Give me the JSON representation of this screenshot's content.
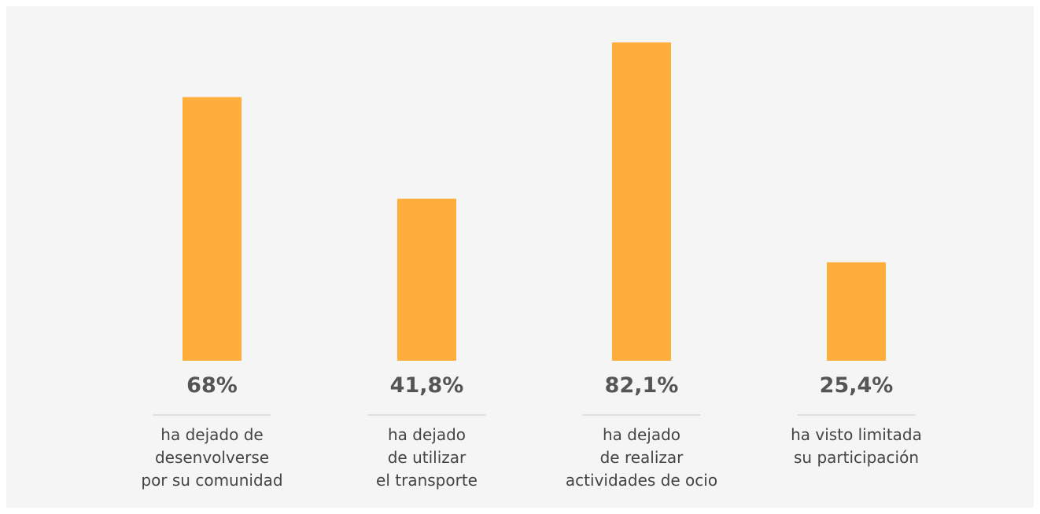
{
  "chart_data": {
    "type": "bar",
    "categories": [
      "ha dejado de\ndesenvolverse\npor su comunidad",
      "ha dejado\nde utilizar\nel transporte",
      "ha dejado\nde realizar\nactividades de ocio",
      "ha visto limitada\nsu participación"
    ],
    "values": [
      68,
      41.8,
      82.1,
      25.4
    ],
    "value_labels": [
      "68%",
      "41,8%",
      "82,1%",
      "25,4%"
    ],
    "color": "#ffad3b",
    "ylim": [
      0,
      90
    ]
  }
}
